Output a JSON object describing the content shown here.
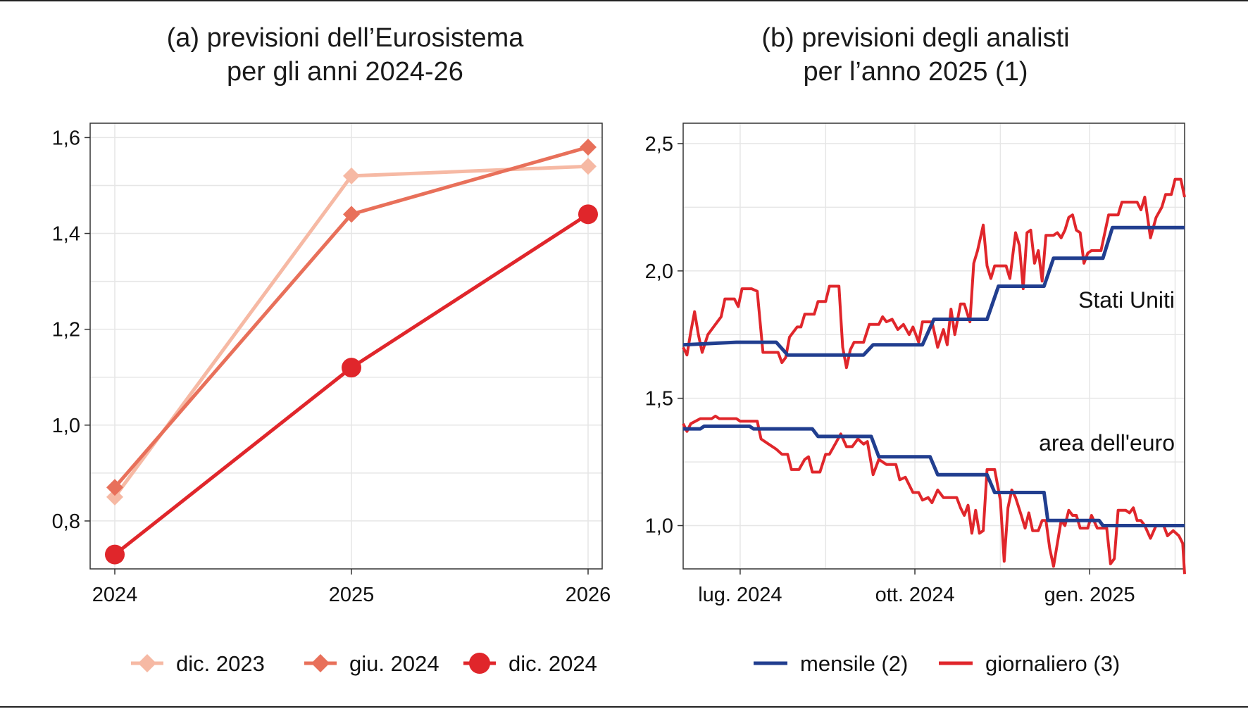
{
  "figure": {
    "panel_a_title_line1": "(a) previsioni dell’Eurosistema",
    "panel_a_title_line2": "per gli anni 2024-26",
    "panel_b_title_line1": "(b) previsioni degli analisti",
    "panel_b_title_line2": "per l’anno 2025 (1)"
  },
  "colors": {
    "dic2023": "#f6b9a4",
    "giu2024": "#e8705a",
    "dic2024": "#e0262b",
    "mensile": "#213e8f",
    "giornaliero": "#e0262b",
    "grid": "#e6e6e6",
    "frame": "#333333"
  },
  "chart_data": [
    {
      "type": "line",
      "title": "(a) previsioni dell’Eurosistema per gli anni 2024-26",
      "categories": [
        "2024",
        "2025",
        "2026"
      ],
      "ylim": [
        0.7,
        1.63
      ],
      "yticks": [
        "0,8",
        "1,0",
        "1,2",
        "1,4",
        "1,6"
      ],
      "ytick_values": [
        0.8,
        1.0,
        1.2,
        1.4,
        1.6
      ],
      "grid": true,
      "legend_position": "bottom",
      "series": [
        {
          "name": "dic. 2023",
          "marker": "diamond",
          "values": [
            0.85,
            1.52,
            1.54
          ]
        },
        {
          "name": "giu. 2024",
          "marker": "diamond",
          "values": [
            0.87,
            1.44,
            1.58
          ]
        },
        {
          "name": "dic. 2024",
          "marker": "circle",
          "values": [
            0.73,
            1.12,
            1.44
          ]
        }
      ]
    },
    {
      "type": "line",
      "title": "(b) previsioni degli analisti per l’anno 2025 (1)",
      "x_axis": "time",
      "xlim": [
        "2024-06-01",
        "2025-02-20"
      ],
      "xtick_labels": [
        "lug. 2024",
        "ott. 2024",
        "gen. 2025"
      ],
      "xtick_dates": [
        "2024-07-01",
        "2024-10-01",
        "2025-01-01"
      ],
      "ylim": [
        0.83,
        2.58
      ],
      "yticks": [
        "1,0",
        "1,5",
        "2,0",
        "2,5"
      ],
      "ytick_values": [
        1.0,
        1.5,
        2.0,
        2.5
      ],
      "grid": true,
      "legend_position": "bottom",
      "annotations": [
        "Stati Uniti",
        "area dell'euro"
      ],
      "legend": [
        "mensile (2)",
        "giornaliero (3)"
      ],
      "series": [
        {
          "group": "Stati Uniti",
          "kind": "mensile",
          "points": [
            [
              "2024-06-01",
              1.71
            ],
            [
              "2024-06-29",
              1.72
            ],
            [
              "2024-07-20",
              1.72
            ],
            [
              "2024-07-26",
              1.67
            ],
            [
              "2024-09-04",
              1.67
            ],
            [
              "2024-09-09",
              1.71
            ],
            [
              "2024-10-05",
              1.71
            ],
            [
              "2024-10-11",
              1.81
            ],
            [
              "2024-11-08",
              1.81
            ],
            [
              "2024-11-14",
              1.94
            ],
            [
              "2024-12-08",
              1.94
            ],
            [
              "2024-12-13",
              2.05
            ],
            [
              "2025-01-08",
              2.05
            ],
            [
              "2025-01-13",
              2.17
            ],
            [
              "2025-02-20",
              2.17
            ]
          ]
        },
        {
          "group": "Stati Uniti",
          "kind": "giornaliero",
          "points": [
            [
              "2024-06-01",
              1.7
            ],
            [
              "2024-06-03",
              1.67
            ],
            [
              "2024-06-05",
              1.76
            ],
            [
              "2024-06-07",
              1.84
            ],
            [
              "2024-06-09",
              1.75
            ],
            [
              "2024-06-11",
              1.68
            ],
            [
              "2024-06-14",
              1.75
            ],
            [
              "2024-06-18",
              1.79
            ],
            [
              "2024-06-21",
              1.82
            ],
            [
              "2024-06-23",
              1.89
            ],
            [
              "2024-06-28",
              1.89
            ],
            [
              "2024-06-30",
              1.86
            ],
            [
              "2024-07-02",
              1.93
            ],
            [
              "2024-07-07",
              1.93
            ],
            [
              "2024-07-10",
              1.92
            ],
            [
              "2024-07-13",
              1.68
            ],
            [
              "2024-07-21",
              1.68
            ],
            [
              "2024-07-23",
              1.64
            ],
            [
              "2024-07-25",
              1.66
            ],
            [
              "2024-07-27",
              1.74
            ],
            [
              "2024-07-31",
              1.78
            ],
            [
              "2024-08-02",
              1.78
            ],
            [
              "2024-08-04",
              1.83
            ],
            [
              "2024-08-09",
              1.83
            ],
            [
              "2024-08-11",
              1.88
            ],
            [
              "2024-08-15",
              1.88
            ],
            [
              "2024-08-17",
              1.94
            ],
            [
              "2024-08-22",
              1.94
            ],
            [
              "2024-08-24",
              1.7
            ],
            [
              "2024-08-26",
              1.62
            ],
            [
              "2024-08-28",
              1.69
            ],
            [
              "2024-08-30",
              1.72
            ],
            [
              "2024-09-04",
              1.72
            ],
            [
              "2024-09-07",
              1.79
            ],
            [
              "2024-09-12",
              1.79
            ],
            [
              "2024-09-14",
              1.82
            ],
            [
              "2024-09-16",
              1.8
            ],
            [
              "2024-09-19",
              1.81
            ],
            [
              "2024-09-22",
              1.77
            ],
            [
              "2024-09-25",
              1.79
            ],
            [
              "2024-09-28",
              1.75
            ],
            [
              "2024-09-30",
              1.78
            ],
            [
              "2024-10-03",
              1.72
            ],
            [
              "2024-10-05",
              1.8
            ],
            [
              "2024-10-10",
              1.8
            ],
            [
              "2024-10-13",
              1.7
            ],
            [
              "2024-10-16",
              1.77
            ],
            [
              "2024-10-18",
              1.71
            ],
            [
              "2024-10-20",
              1.85
            ],
            [
              "2024-10-22",
              1.75
            ],
            [
              "2024-10-25",
              1.87
            ],
            [
              "2024-10-27",
              1.87
            ],
            [
              "2024-10-30",
              1.8
            ],
            [
              "2024-11-01",
              2.03
            ],
            [
              "2024-11-03",
              2.08
            ],
            [
              "2024-11-06",
              2.18
            ],
            [
              "2024-11-08",
              2.02
            ],
            [
              "2024-11-10",
              1.97
            ],
            [
              "2024-11-12",
              2.02
            ],
            [
              "2024-11-18",
              2.02
            ],
            [
              "2024-11-20",
              1.97
            ],
            [
              "2024-11-23",
              2.15
            ],
            [
              "2024-11-25",
              2.1
            ],
            [
              "2024-11-27",
              1.93
            ],
            [
              "2024-11-29",
              2.15
            ],
            [
              "2024-12-01",
              2.16
            ],
            [
              "2024-12-03",
              2.03
            ],
            [
              "2024-12-05",
              2.08
            ],
            [
              "2024-12-07",
              1.96
            ],
            [
              "2024-12-09",
              2.14
            ],
            [
              "2024-12-13",
              2.14
            ],
            [
              "2024-12-15",
              2.15
            ],
            [
              "2024-12-17",
              2.13
            ],
            [
              "2024-12-19",
              2.16
            ],
            [
              "2024-12-21",
              2.21
            ],
            [
              "2024-12-23",
              2.22
            ],
            [
              "2024-12-25",
              2.16
            ],
            [
              "2024-12-27",
              2.15
            ],
            [
              "2024-12-29",
              2.03
            ],
            [
              "2024-12-31",
              2.07
            ],
            [
              "2025-01-02",
              2.08
            ],
            [
              "2025-01-07",
              2.08
            ],
            [
              "2025-01-09",
              2.15
            ],
            [
              "2025-01-11",
              2.22
            ],
            [
              "2025-01-16",
              2.22
            ],
            [
              "2025-01-18",
              2.27
            ],
            [
              "2025-01-26",
              2.27
            ],
            [
              "2025-01-28",
              2.24
            ],
            [
              "2025-01-30",
              2.29
            ],
            [
              "2025-02-02",
              2.13
            ],
            [
              "2025-02-05",
              2.21
            ],
            [
              "2025-02-08",
              2.25
            ],
            [
              "2025-02-10",
              2.3
            ],
            [
              "2025-02-13",
              2.3
            ],
            [
              "2025-02-15",
              2.36
            ],
            [
              "2025-02-18",
              2.36
            ],
            [
              "2025-02-20",
              2.29
            ]
          ]
        },
        {
          "group": "area dell'euro",
          "kind": "mensile",
          "points": [
            [
              "2024-06-01",
              1.38
            ],
            [
              "2024-06-10",
              1.38
            ],
            [
              "2024-06-12",
              1.39
            ],
            [
              "2024-07-06",
              1.39
            ],
            [
              "2024-07-08",
              1.38
            ],
            [
              "2024-08-08",
              1.38
            ],
            [
              "2024-08-11",
              1.35
            ],
            [
              "2024-09-08",
              1.35
            ],
            [
              "2024-09-12",
              1.27
            ],
            [
              "2024-10-09",
              1.27
            ],
            [
              "2024-10-13",
              1.2
            ],
            [
              "2024-11-08",
              1.2
            ],
            [
              "2024-11-12",
              1.13
            ],
            [
              "2024-12-08",
              1.13
            ],
            [
              "2024-12-10",
              1.02
            ],
            [
              "2025-01-06",
              1.02
            ],
            [
              "2025-01-08",
              1.0
            ],
            [
              "2025-02-20",
              1.0
            ]
          ]
        },
        {
          "group": "area dell'euro",
          "kind": "giornaliero",
          "points": [
            [
              "2024-06-01",
              1.4
            ],
            [
              "2024-06-03",
              1.37
            ],
            [
              "2024-06-05",
              1.4
            ],
            [
              "2024-06-10",
              1.42
            ],
            [
              "2024-06-16",
              1.42
            ],
            [
              "2024-06-18",
              1.43
            ],
            [
              "2024-06-20",
              1.42
            ],
            [
              "2024-06-29",
              1.42
            ],
            [
              "2024-07-01",
              1.41
            ],
            [
              "2024-07-10",
              1.41
            ],
            [
              "2024-07-12",
              1.34
            ],
            [
              "2024-07-16",
              1.32
            ],
            [
              "2024-07-20",
              1.3
            ],
            [
              "2024-07-23",
              1.28
            ],
            [
              "2024-07-26",
              1.28
            ],
            [
              "2024-07-28",
              1.22
            ],
            [
              "2024-08-01",
              1.22
            ],
            [
              "2024-08-04",
              1.26
            ],
            [
              "2024-08-06",
              1.27
            ],
            [
              "2024-08-08",
              1.21
            ],
            [
              "2024-08-12",
              1.21
            ],
            [
              "2024-08-15",
              1.28
            ],
            [
              "2024-08-17",
              1.28
            ],
            [
              "2024-08-20",
              1.32
            ],
            [
              "2024-08-23",
              1.36
            ],
            [
              "2024-08-26",
              1.31
            ],
            [
              "2024-08-29",
              1.31
            ],
            [
              "2024-09-01",
              1.34
            ],
            [
              "2024-09-04",
              1.32
            ],
            [
              "2024-09-06",
              1.33
            ],
            [
              "2024-09-09",
              1.2
            ],
            [
              "2024-09-12",
              1.26
            ],
            [
              "2024-09-16",
              1.24
            ],
            [
              "2024-09-21",
              1.24
            ],
            [
              "2024-09-23",
              1.18
            ],
            [
              "2024-09-26",
              1.19
            ],
            [
              "2024-09-30",
              1.13
            ],
            [
              "2024-10-03",
              1.13
            ],
            [
              "2024-10-05",
              1.1
            ],
            [
              "2024-10-08",
              1.11
            ],
            [
              "2024-10-10",
              1.09
            ],
            [
              "2024-10-13",
              1.14
            ],
            [
              "2024-10-16",
              1.11
            ],
            [
              "2024-10-23",
              1.11
            ],
            [
              "2024-10-25",
              1.07
            ],
            [
              "2024-10-27",
              1.04
            ],
            [
              "2024-10-29",
              1.08
            ],
            [
              "2024-10-31",
              0.97
            ],
            [
              "2024-11-02",
              1.06
            ],
            [
              "2024-11-04",
              0.97
            ],
            [
              "2024-11-06",
              0.98
            ],
            [
              "2024-11-08",
              1.22
            ],
            [
              "2024-11-12",
              1.22
            ],
            [
              "2024-11-15",
              1.1
            ],
            [
              "2024-11-17",
              0.86
            ],
            [
              "2024-11-19",
              1.07
            ],
            [
              "2024-11-21",
              1.14
            ],
            [
              "2024-11-23",
              1.11
            ],
            [
              "2024-11-26",
              1.04
            ],
            [
              "2024-11-28",
              0.99
            ],
            [
              "2024-11-30",
              1.05
            ],
            [
              "2024-12-02",
              0.98
            ],
            [
              "2024-12-05",
              0.98
            ],
            [
              "2024-12-07",
              1.02
            ],
            [
              "2024-12-09",
              1.02
            ],
            [
              "2024-12-11",
              0.91
            ],
            [
              "2024-12-13",
              0.84
            ],
            [
              "2024-12-15",
              0.93
            ],
            [
              "2024-12-17",
              1.02
            ],
            [
              "2024-12-19",
              1.0
            ],
            [
              "2024-12-21",
              1.06
            ],
            [
              "2024-12-23",
              1.04
            ],
            [
              "2024-12-25",
              1.04
            ],
            [
              "2024-12-27",
              0.99
            ],
            [
              "2024-12-31",
              0.99
            ],
            [
              "2025-01-02",
              1.04
            ],
            [
              "2025-01-05",
              0.99
            ],
            [
              "2025-01-10",
              0.99
            ],
            [
              "2025-01-12",
              0.85
            ],
            [
              "2025-01-14",
              0.87
            ],
            [
              "2025-01-16",
              1.06
            ],
            [
              "2025-01-20",
              1.06
            ],
            [
              "2025-01-22",
              1.05
            ],
            [
              "2025-01-24",
              1.07
            ],
            [
              "2025-01-26",
              1.02
            ],
            [
              "2025-01-28",
              1.02
            ],
            [
              "2025-01-30",
              1.0
            ],
            [
              "2025-02-02",
              0.95
            ],
            [
              "2025-02-05",
              1.0
            ],
            [
              "2025-02-09",
              1.0
            ],
            [
              "2025-02-11",
              0.96
            ],
            [
              "2025-02-14",
              0.98
            ],
            [
              "2025-02-17",
              0.96
            ],
            [
              "2025-02-19",
              0.93
            ],
            [
              "2025-02-20",
              0.81
            ]
          ]
        }
      ]
    }
  ]
}
